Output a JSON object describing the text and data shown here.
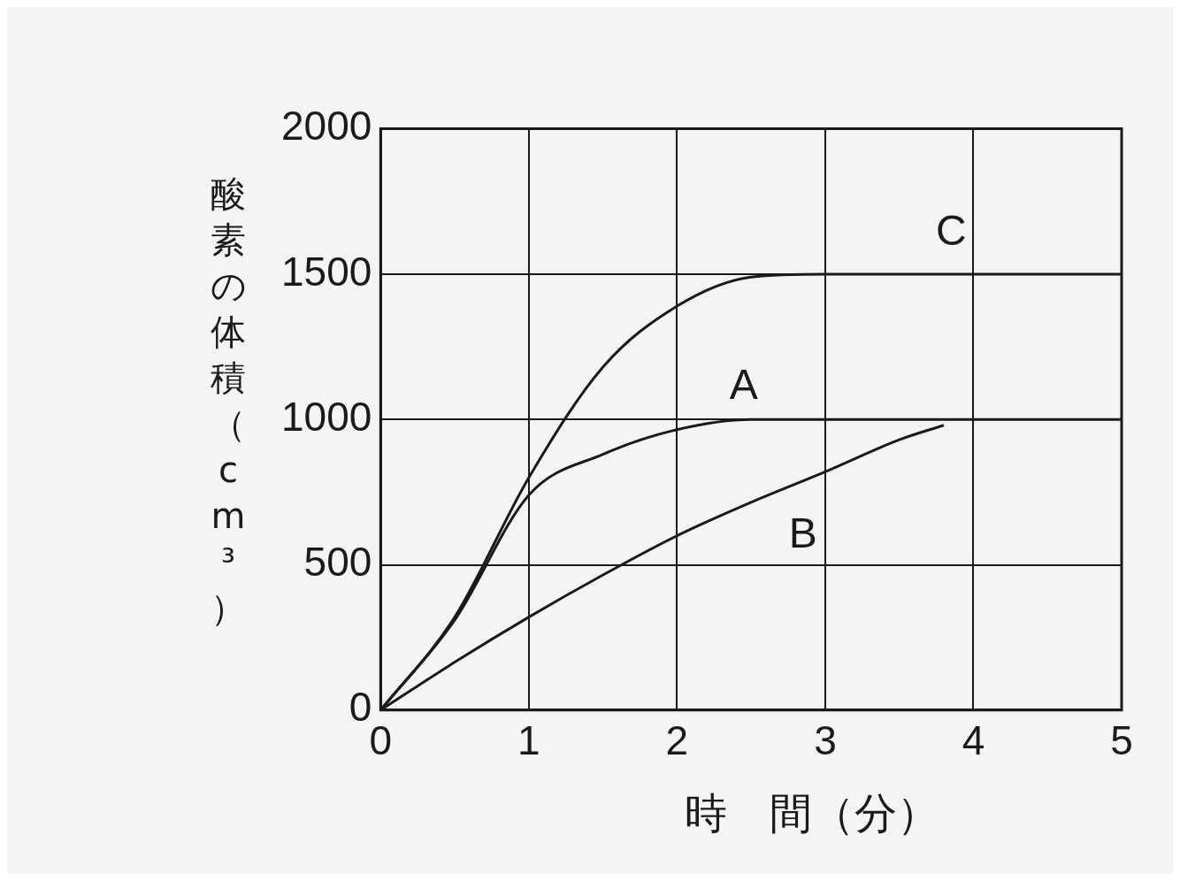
{
  "chart_data": {
    "type": "line",
    "xlabel": "時　間（分）",
    "ylabel": "酸素の体積（cm³）",
    "x": [
      0,
      0.5,
      1,
      1.5,
      2,
      2.5,
      3,
      3.5,
      4,
      4.5,
      5
    ],
    "series": [
      {
        "name": "C",
        "color": "#1a1a1a",
        "values": [
          0,
          320,
          800,
          1180,
          1390,
          1490,
          1500,
          1500,
          1500,
          1500,
          1500
        ]
      },
      {
        "name": "A",
        "color": "#1a1a1a",
        "values": [
          0,
          310,
          740,
          880,
          965,
          1000,
          1000,
          1000,
          1000,
          1000,
          1000
        ]
      },
      {
        "name": "B",
        "color": "#1a1a1a",
        "x": [
          0,
          0.5,
          1,
          1.5,
          2,
          2.5,
          3,
          3.5,
          3.8
        ],
        "values": [
          0,
          165,
          320,
          465,
          600,
          715,
          820,
          930,
          980
        ]
      }
    ],
    "xlim": [
      0,
      5
    ],
    "xticks": [
      0,
      1,
      2,
      3,
      4,
      5
    ],
    "ylim": [
      0,
      2000
    ],
    "yticks": [
      0,
      500,
      1000,
      1500,
      2000
    ],
    "grid": true,
    "legend": false
  }
}
